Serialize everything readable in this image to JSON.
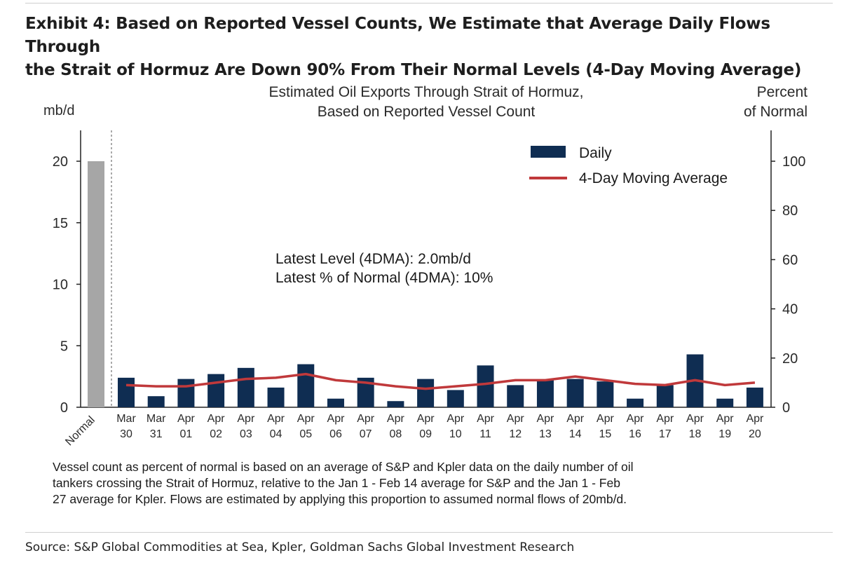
{
  "exhibit": {
    "title_line1": "Exhibit 4: Based on Reported Vessel Counts, We Estimate that Average Daily Flows Through",
    "title_line2": "the Strait of Hormuz Are Down 90% From Their Normal Levels (4-Day Moving Average)"
  },
  "chart_data": {
    "type": "bar",
    "title_line1": "Estimated Oil Exports Through Strait of Hormuz,",
    "title_line2": "Based on Reported Vessel Count",
    "ylabel": "mb/d",
    "y2label_line1": "Percent",
    "y2label_line2": "of Normal",
    "ylim": [
      0,
      22
    ],
    "yticks": [
      0,
      5,
      10,
      15,
      20
    ],
    "y2lim": [
      0,
      110
    ],
    "y2ticks": [
      0,
      20,
      40,
      60,
      80,
      100
    ],
    "normal": {
      "label": "Normal",
      "value": 20,
      "color": "#a6a6a6"
    },
    "categories": [
      [
        "Mar",
        "30"
      ],
      [
        "Mar",
        "31"
      ],
      [
        "Apr",
        "01"
      ],
      [
        "Apr",
        "02"
      ],
      [
        "Apr",
        "03"
      ],
      [
        "Apr",
        "04"
      ],
      [
        "Apr",
        "05"
      ],
      [
        "Apr",
        "06"
      ],
      [
        "Apr",
        "07"
      ],
      [
        "Apr",
        "08"
      ],
      [
        "Apr",
        "09"
      ],
      [
        "Apr",
        "10"
      ],
      [
        "Apr",
        "11"
      ],
      [
        "Apr",
        "12"
      ],
      [
        "Apr",
        "13"
      ],
      [
        "Apr",
        "14"
      ],
      [
        "Apr",
        "15"
      ],
      [
        "Apr",
        "16"
      ],
      [
        "Apr",
        "17"
      ],
      [
        "Apr",
        "18"
      ],
      [
        "Apr",
        "19"
      ],
      [
        "Apr",
        "20"
      ]
    ],
    "series": [
      {
        "name": "Daily",
        "type": "bar",
        "color": "#0f2d52",
        "values": [
          2.4,
          0.9,
          2.3,
          2.7,
          3.2,
          1.6,
          3.5,
          0.7,
          2.4,
          0.5,
          2.3,
          1.4,
          3.4,
          1.8,
          2.2,
          2.3,
          2.1,
          0.7,
          1.8,
          4.3,
          0.7,
          1.6
        ]
      },
      {
        "name": "4-Day Moving Average",
        "type": "line",
        "color": "#c0393b",
        "values": [
          1.8,
          1.7,
          1.7,
          2.0,
          2.3,
          2.4,
          2.7,
          2.2,
          2.0,
          1.7,
          1.5,
          1.7,
          1.9,
          2.2,
          2.2,
          2.5,
          2.2,
          1.9,
          1.8,
          2.2,
          1.8,
          2.0
        ]
      }
    ],
    "annotation_line1": "Latest Level (4DMA): 2.0mb/d",
    "annotation_line2": "Latest % of Normal (4DMA): 10%",
    "legend_position": "top-right"
  },
  "footnote": {
    "line1": "Vessel count as percent of normal is based on an average of S&P and Kpler data on the daily number of oil",
    "line2": "tankers crossing the Strait of Hormuz, relative to the Jan 1 - Feb 14 average for S&P and the Jan 1 - Feb",
    "line3": "27 average for Kpler. Flows are estimated by applying this proportion to assumed normal flows of 20mb/d."
  },
  "source": "Source: S&P Global Commodities at Sea, Kpler, Goldman Sachs Global Investment Research"
}
